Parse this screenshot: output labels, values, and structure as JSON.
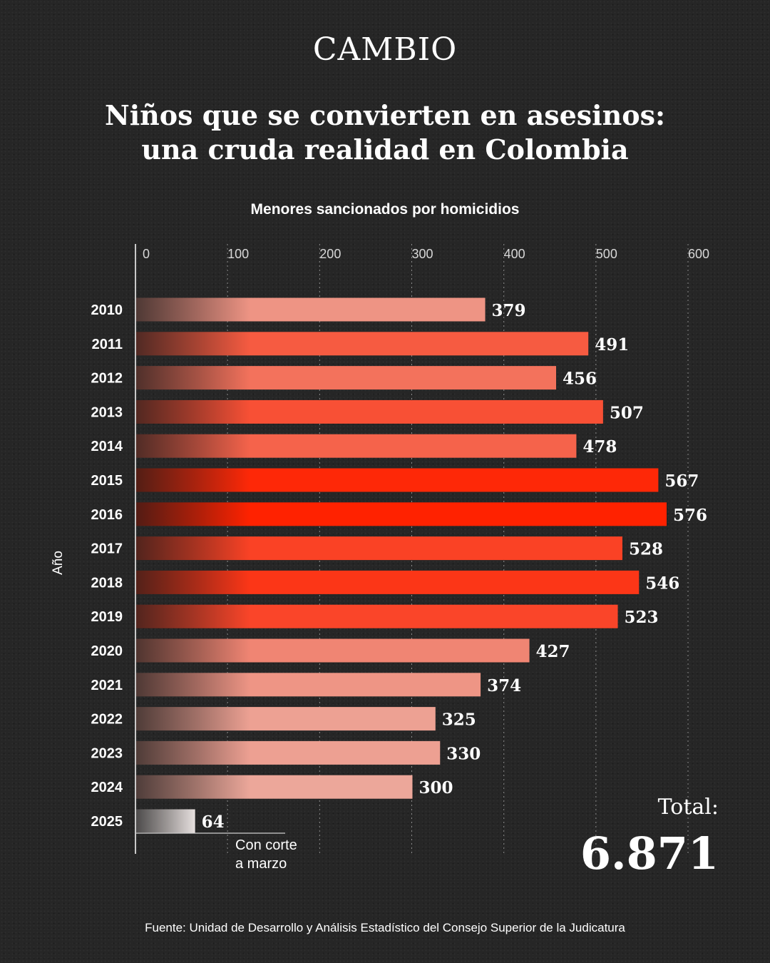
{
  "brand": "CAMBIO",
  "title_lines": [
    "Niños que se convierten en asesinos:",
    "una cruda realidad en Colombia"
  ],
  "subtitle": "Menores sancionados por homicidios",
  "ylabel": "Año",
  "total": {
    "label": "Total:",
    "value": "6.871"
  },
  "note_lines": [
    "Con corte",
    "a marzo"
  ],
  "source": "Fuente: Unidad de Desarrollo y Análisis Estadístico del Consejo Superior de la Judicatura",
  "chart_data": {
    "type": "bar",
    "orientation": "horizontal",
    "categories": [
      "2010",
      "2011",
      "2012",
      "2013",
      "2014",
      "2015",
      "2016",
      "2017",
      "2018",
      "2019",
      "2020",
      "2021",
      "2022",
      "2023",
      "2024",
      "2025"
    ],
    "values": [
      379,
      491,
      456,
      507,
      478,
      567,
      576,
      528,
      546,
      523,
      427,
      374,
      325,
      330,
      300,
      64
    ],
    "xlim": [
      0,
      600
    ],
    "xticks": [
      0,
      100,
      200,
      300,
      400,
      500,
      600
    ],
    "grid": true,
    "colors": {
      "low": "#e6e0df",
      "mid": "#ef8a78",
      "high": "#ff2200",
      "fade_start": "#3a0e0a"
    }
  }
}
